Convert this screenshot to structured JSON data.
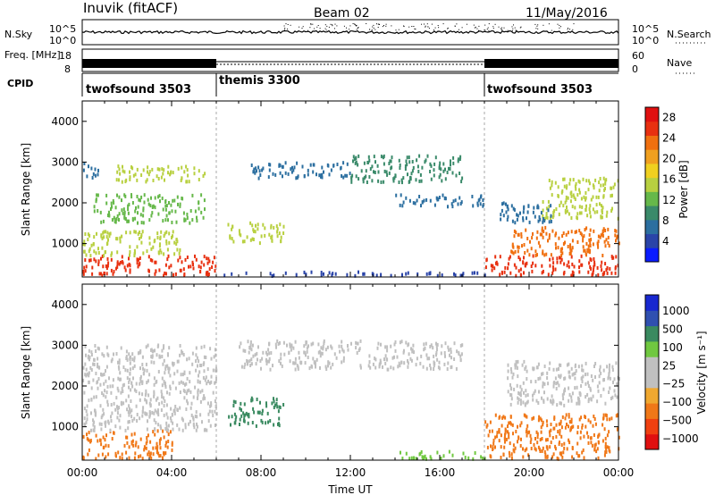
{
  "header": {
    "station": "Inuvik (fitACF)",
    "beam": "Beam 02",
    "date": "11/May/2016"
  },
  "colors": {
    "power": [
      "#0a1cff",
      "#2a44a8",
      "#2c6fa0",
      "#3a8a6a",
      "#66b84a",
      "#b8d040",
      "#f0d020",
      "#f0a020",
      "#f07010",
      "#e83010",
      "#e01010"
    ],
    "velocity": [
      "#e01010",
      "#f04010",
      "#f07818",
      "#f0a830",
      "#c0c0c0",
      "#c0c0c0",
      "#70c840",
      "#3a8a60",
      "#3050b0",
      "#1828d0"
    ]
  },
  "chart_data": [
    {
      "type": "line",
      "name": "sky-noise-panel",
      "ylabel": "N.Sky",
      "ylabel_right": "N.Search",
      "yticks_left": [
        "10^5",
        "10^0"
      ],
      "yticks_right": [
        "10^5",
        "10^0"
      ],
      "xlim": [
        0,
        24
      ],
      "ylim": [
        0,
        5
      ]
    },
    {
      "type": "line",
      "name": "frequency-panel",
      "ylabel": "Freq. [MHz]",
      "ylabel_right": "Nave",
      "yticks_left": [
        "18",
        "8"
      ],
      "yticks_right": [
        "60",
        "0"
      ],
      "xlim": [
        0,
        24
      ],
      "segments": [
        {
          "start": 0,
          "end": 6,
          "level": "high"
        },
        {
          "start": 6,
          "end": 18,
          "level": "low"
        },
        {
          "start": 18,
          "end": 24,
          "level": "high"
        }
      ]
    },
    {
      "type": "table",
      "name": "cpid-strip",
      "label": "CPID",
      "modes": [
        {
          "start": 0,
          "end": 6,
          "label": "twofsound 3503"
        },
        {
          "start": 6,
          "end": 18,
          "label": "themis 3300"
        },
        {
          "start": 18,
          "end": 24,
          "label": "twofsound 3503"
        }
      ]
    },
    {
      "type": "heatmap",
      "name": "power-panel",
      "xlim": [
        0,
        24
      ],
      "ylim": [
        180,
        4500
      ],
      "ylabel": "Slant Range [km]",
      "yticks": [
        1000,
        2000,
        3000,
        4000
      ],
      "colorbar": {
        "label": "Power [dB]",
        "ticks": [
          4,
          8,
          12,
          16,
          20,
          24,
          28
        ],
        "range": [
          0,
          30
        ]
      },
      "regions": [
        {
          "t0": 0,
          "t1": 6,
          "r0": 200,
          "r1": 700,
          "level": 26
        },
        {
          "t0": 0,
          "t1": 4.5,
          "r0": 700,
          "r1": 1300,
          "level": 14
        },
        {
          "t0": 0.5,
          "t1": 5.5,
          "r0": 1500,
          "r1": 2200,
          "level": 12
        },
        {
          "t0": 1.5,
          "t1": 5.5,
          "r0": 2500,
          "r1": 2900,
          "level": 14
        },
        {
          "t0": 0,
          "t1": 0.7,
          "r0": 2600,
          "r1": 3000,
          "level": 8
        },
        {
          "t0": 6.5,
          "t1": 9,
          "r0": 1000,
          "r1": 1500,
          "level": 16
        },
        {
          "t0": 7.5,
          "t1": 12,
          "r0": 2600,
          "r1": 3000,
          "level": 7
        },
        {
          "t0": 12,
          "t1": 17,
          "r0": 2500,
          "r1": 3150,
          "level": 9
        },
        {
          "t0": 6,
          "t1": 18,
          "r0": 200,
          "r1": 300,
          "level": 5
        },
        {
          "t0": 14,
          "t1": 18,
          "r0": 1900,
          "r1": 2200,
          "level": 6
        },
        {
          "t0": 18,
          "t1": 24,
          "r0": 200,
          "r1": 700,
          "level": 27
        },
        {
          "t0": 19,
          "t1": 24,
          "r0": 700,
          "r1": 1400,
          "level": 22
        },
        {
          "t0": 20.5,
          "t1": 24,
          "r0": 1600,
          "r1": 2600,
          "level": 14
        },
        {
          "t0": 18.5,
          "t1": 21,
          "r0": 1500,
          "r1": 2000,
          "level": 7
        }
      ]
    },
    {
      "type": "heatmap",
      "name": "velocity-panel",
      "xlim": [
        0,
        24
      ],
      "ylim": [
        180,
        4500
      ],
      "xlabel": "Time UT",
      "ylabel": "Slant Range [km]",
      "yticks": [
        1000,
        2000,
        3000,
        4000
      ],
      "xticks": [
        "00:00",
        "04:00",
        "08:00",
        "12:00",
        "16:00",
        "20:00",
        "00:00"
      ],
      "colorbar": {
        "label": "Velocity [m s⁻¹]",
        "ticks": [
          "1000",
          "500",
          "100",
          "25",
          "−25",
          "−100",
          "−500",
          "−1000"
        ]
      },
      "regions": [
        {
          "t0": 0,
          "t1": 4,
          "r0": 200,
          "r1": 900,
          "level": "neg-mid"
        },
        {
          "t0": 0,
          "t1": 6,
          "r0": 900,
          "r1": 3000,
          "level": "near-zero"
        },
        {
          "t0": 6.5,
          "t1": 9,
          "r0": 1000,
          "r1": 1700,
          "level": "pos-mid"
        },
        {
          "t0": 7,
          "t1": 17,
          "r0": 2400,
          "r1": 3100,
          "level": "near-zero"
        },
        {
          "t0": 14,
          "t1": 18,
          "r0": 200,
          "r1": 400,
          "level": "pos-low"
        },
        {
          "t0": 18,
          "t1": 24,
          "r0": 200,
          "r1": 1300,
          "level": "neg-mid"
        },
        {
          "t0": 19,
          "t1": 24,
          "r0": 1500,
          "r1": 2600,
          "level": "near-zero"
        }
      ]
    }
  ]
}
